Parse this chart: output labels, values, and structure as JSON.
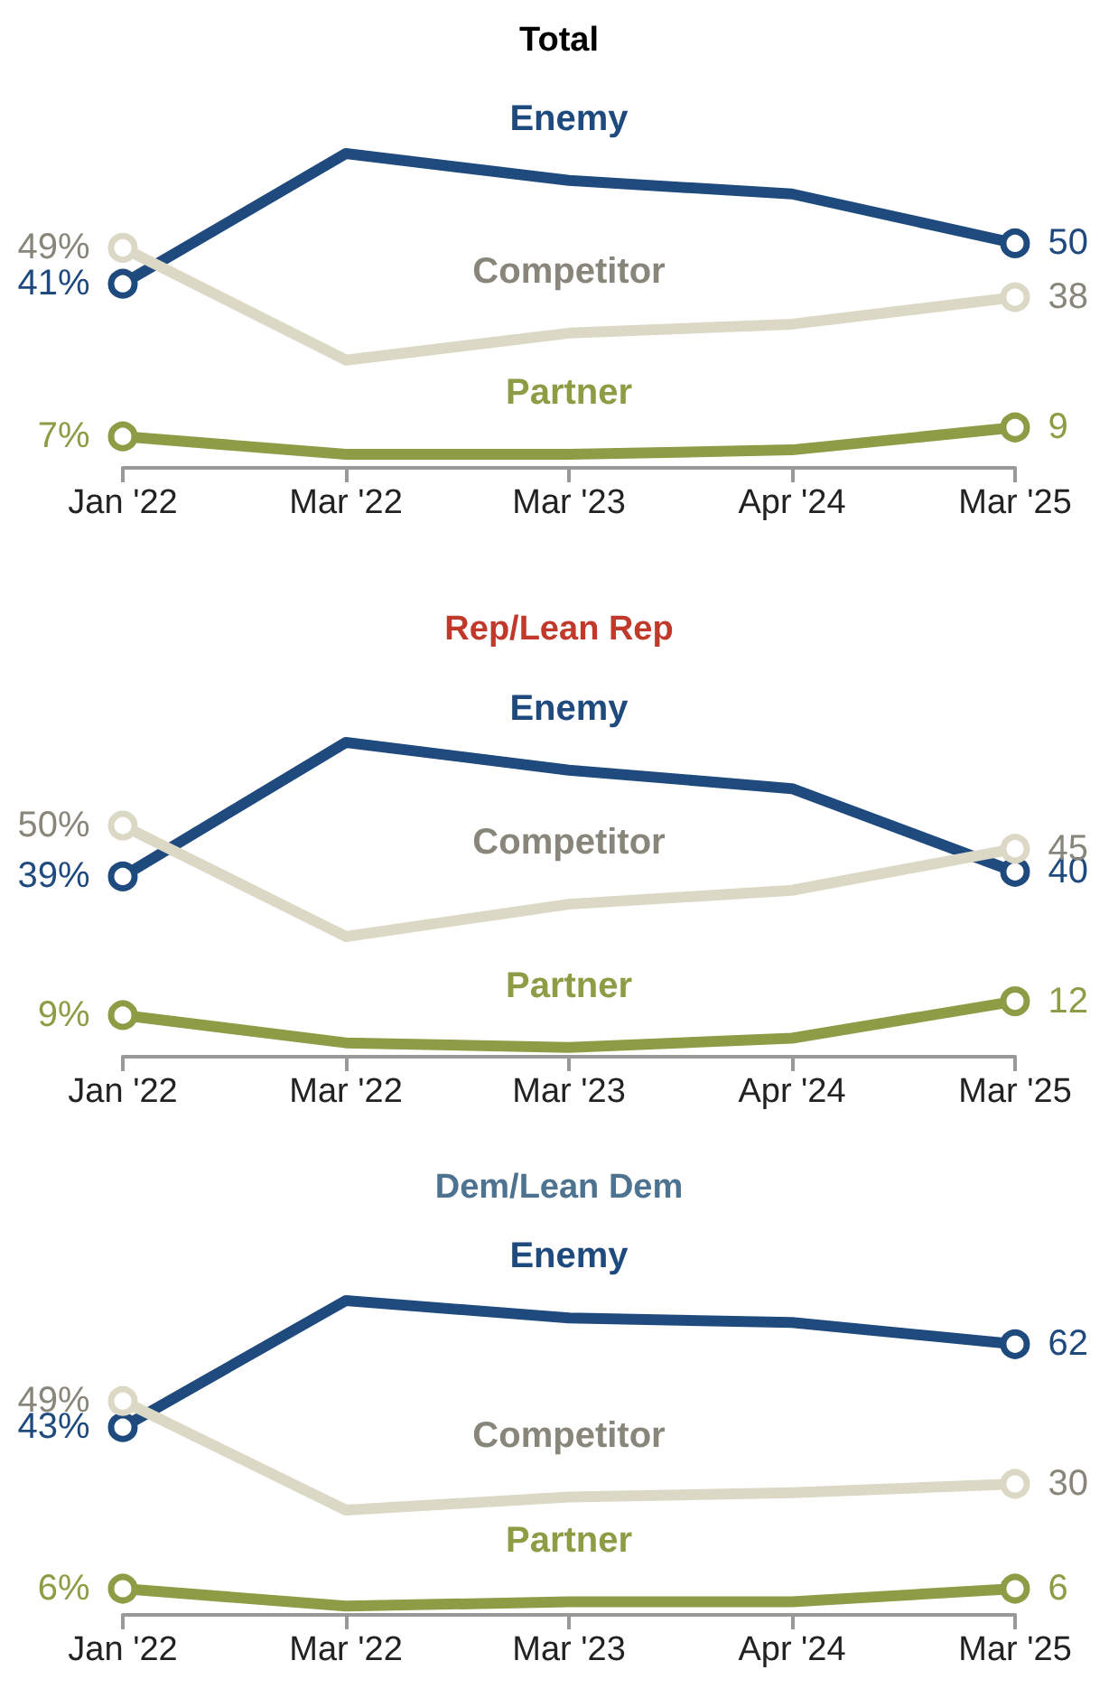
{
  "chart_data": [
    {
      "type": "line",
      "title": "Total",
      "categories": [
        "Jan '22",
        "Mar '22",
        "Mar '23",
        "Apr '24",
        "Mar '25"
      ],
      "grid": false,
      "legend": false,
      "series": [
        {
          "name": "Enemy",
          "color": "#1f4a7e",
          "values": [
            41,
            70,
            64,
            61,
            50
          ],
          "value_labels": [
            "41%",
            null,
            null,
            null,
            "50"
          ]
        },
        {
          "name": "Competitor",
          "color": "#dcd8c6",
          "values": [
            49,
            24,
            30,
            32,
            38
          ],
          "value_labels": [
            "49%",
            null,
            null,
            null,
            "38"
          ]
        },
        {
          "name": "Partner",
          "color": "#8e9c45",
          "values": [
            7,
            3,
            3,
            4,
            9
          ],
          "value_labels": [
            "7%",
            null,
            null,
            null,
            "9"
          ]
        }
      ]
    },
    {
      "type": "line",
      "title": "Rep/Lean Rep",
      "categories": [
        "Jan '22",
        "Mar '22",
        "Mar '23",
        "Apr '24",
        "Mar '25"
      ],
      "grid": false,
      "legend": false,
      "series": [
        {
          "name": "Enemy",
          "color": "#1f4a7e",
          "values": [
            39,
            68,
            62,
            58,
            40
          ],
          "value_labels": [
            "39%",
            null,
            null,
            null,
            "40"
          ]
        },
        {
          "name": "Competitor",
          "color": "#dcd8c6",
          "values": [
            50,
            26,
            33,
            36,
            45
          ],
          "value_labels": [
            "50%",
            null,
            null,
            null,
            "45"
          ]
        },
        {
          "name": "Partner",
          "color": "#8e9c45",
          "values": [
            9,
            3,
            2,
            4,
            12
          ],
          "value_labels": [
            "9%",
            null,
            null,
            null,
            "12"
          ]
        }
      ]
    },
    {
      "type": "line",
      "title": "Dem/Lean Dem",
      "categories": [
        "Jan '22",
        "Mar '22",
        "Mar '23",
        "Apr '24",
        "Mar '25"
      ],
      "grid": false,
      "legend": false,
      "series": [
        {
          "name": "Enemy",
          "color": "#1f4a7e",
          "values": [
            43,
            72,
            68,
            67,
            62
          ],
          "value_labels": [
            "43%",
            null,
            null,
            null,
            "62"
          ]
        },
        {
          "name": "Competitor",
          "color": "#dcd8c6",
          "values": [
            49,
            24,
            27,
            28,
            30
          ],
          "value_labels": [
            "49%",
            null,
            null,
            null,
            "30"
          ]
        },
        {
          "name": "Partner",
          "color": "#8e9c45",
          "values": [
            6,
            2,
            3,
            3,
            6
          ],
          "value_labels": [
            "6%",
            null,
            null,
            null,
            "6"
          ]
        }
      ]
    }
  ]
}
